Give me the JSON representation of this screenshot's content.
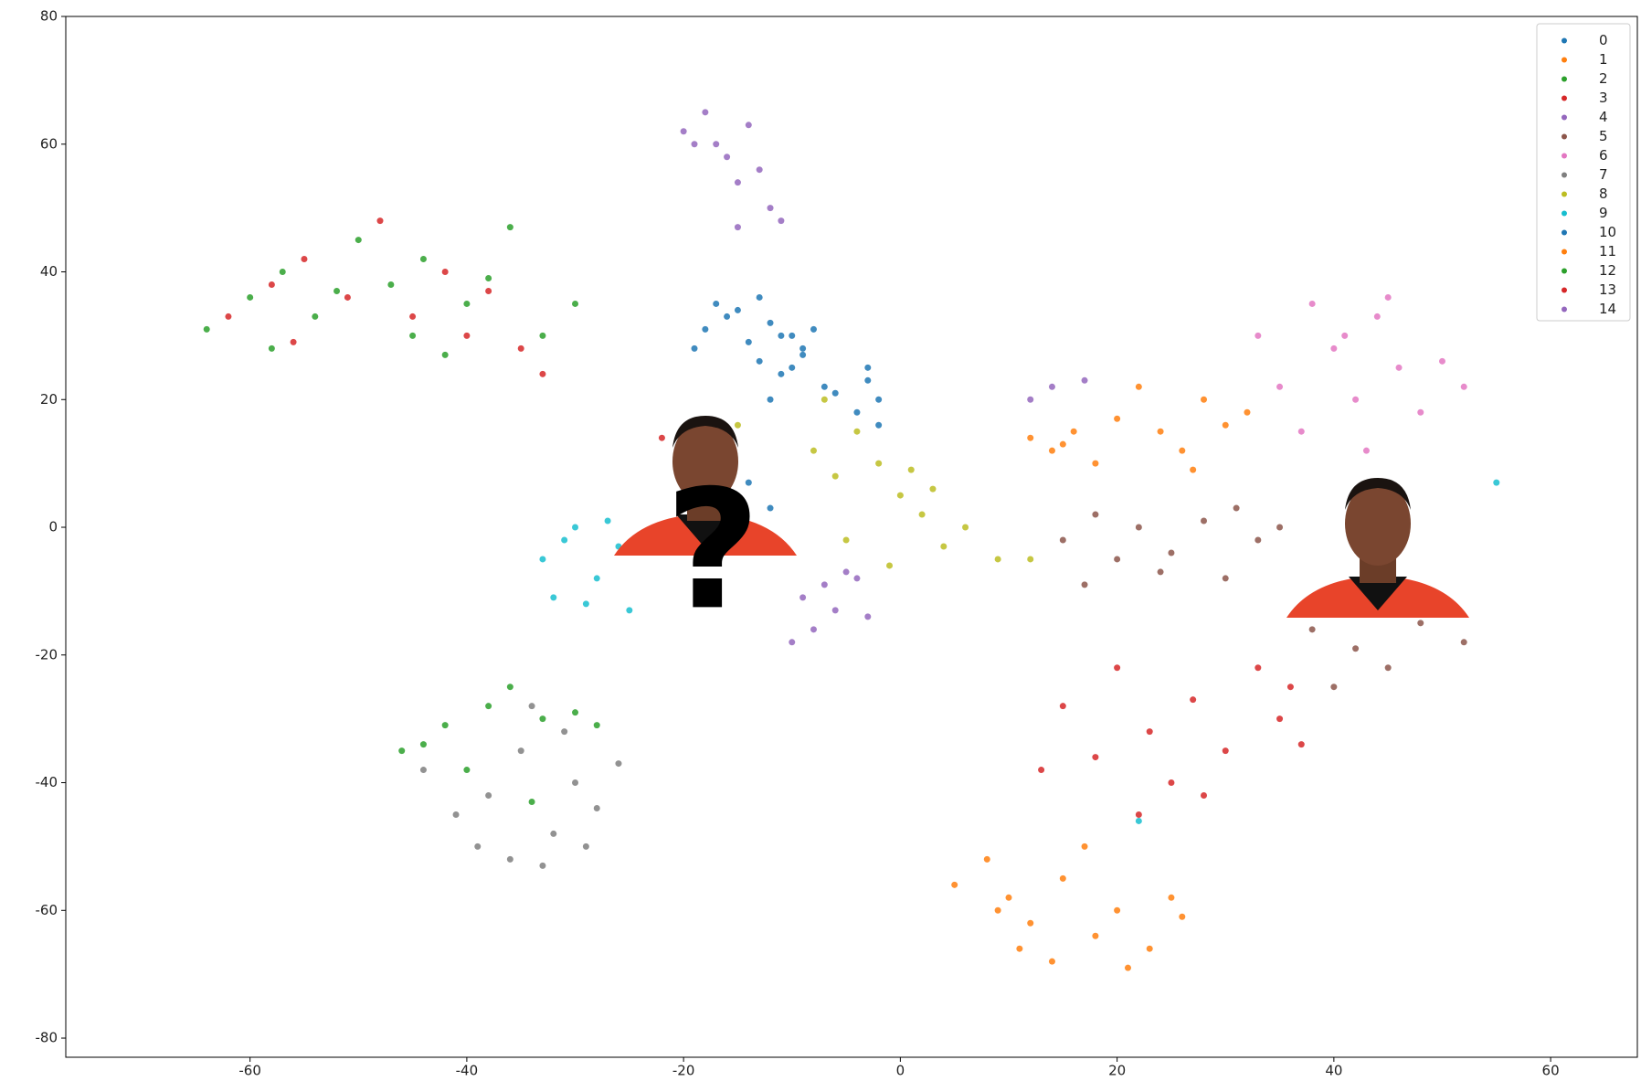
{
  "chart_data": {
    "type": "scatter",
    "xlim": [
      -77,
      68
    ],
    "ylim": [
      -83,
      80
    ],
    "xticks": [
      -60,
      -40,
      -20,
      0,
      20,
      40,
      60
    ],
    "yticks": [
      -80,
      -60,
      -40,
      -20,
      0,
      20,
      40,
      60,
      80
    ],
    "grid": false,
    "legend": "upper right",
    "annotation": "?",
    "series": [
      {
        "name": "0",
        "color": "#1f77b4",
        "x": [
          -18,
          -16,
          -14,
          -12,
          -10,
          -9,
          -13,
          -11,
          -15,
          -8,
          -7,
          -3,
          -2,
          -4,
          -14,
          -12
        ],
        "y": [
          31,
          33,
          29,
          32,
          30,
          27,
          26,
          24,
          34,
          31,
          22,
          25,
          20,
          18,
          7,
          3
        ]
      },
      {
        "name": "1",
        "color": "#ff7f0e",
        "x": [
          5,
          8,
          10,
          12,
          15,
          18,
          20,
          23,
          25,
          14,
          17,
          11,
          21,
          9,
          26
        ],
        "y": [
          -56,
          -52,
          -58,
          -62,
          -55,
          -64,
          -60,
          -66,
          -58,
          -68,
          -50,
          -66,
          -69,
          -60,
          -61
        ]
      },
      {
        "name": "2",
        "color": "#2ca02c",
        "x": [
          -64,
          -60,
          -57,
          -54,
          -50,
          -47,
          -44,
          -40,
          -36,
          -33,
          -58,
          -52,
          -45,
          -38,
          -42,
          -30
        ],
        "y": [
          31,
          36,
          40,
          33,
          45,
          38,
          42,
          35,
          47,
          30,
          28,
          37,
          30,
          39,
          27,
          35
        ]
      },
      {
        "name": "3",
        "color": "#d62728",
        "x": [
          -62,
          -58,
          -55,
          -51,
          -48,
          -45,
          -42,
          -38,
          -35,
          -33,
          -56,
          -40
        ],
        "y": [
          33,
          38,
          42,
          36,
          48,
          33,
          40,
          37,
          28,
          24,
          29,
          30
        ]
      },
      {
        "name": "4",
        "color": "#9467bd",
        "x": [
          -20,
          -18,
          -16,
          -15,
          -13,
          -12,
          -14,
          -17,
          -11,
          -19,
          -15
        ],
        "y": [
          62,
          65,
          58,
          54,
          56,
          50,
          63,
          60,
          48,
          60,
          47
        ]
      },
      {
        "name": "5",
        "color": "#8c564b",
        "x": [
          15,
          18,
          20,
          22,
          25,
          28,
          30,
          33,
          35,
          17,
          24,
          31,
          38,
          42,
          45,
          48,
          52,
          40,
          44
        ],
        "y": [
          -2,
          2,
          -5,
          0,
          -4,
          1,
          -8,
          -2,
          0,
          -9,
          -7,
          3,
          -16,
          -19,
          -22,
          -15,
          -18,
          -25,
          -13
        ]
      },
      {
        "name": "6",
        "color": "#e377c2",
        "x": [
          33,
          35,
          38,
          40,
          42,
          44,
          46,
          48,
          50,
          52,
          37,
          43,
          45,
          41
        ],
        "y": [
          30,
          22,
          35,
          28,
          20,
          33,
          25,
          18,
          26,
          22,
          15,
          12,
          36,
          30
        ]
      },
      {
        "name": "7",
        "color": "#7f7f7f",
        "x": [
          -44,
          -41,
          -38,
          -35,
          -32,
          -30,
          -28,
          -26,
          -36,
          -33,
          -39,
          -29,
          -34,
          -31
        ],
        "y": [
          -38,
          -45,
          -42,
          -35,
          -48,
          -40,
          -44,
          -37,
          -52,
          -53,
          -50,
          -50,
          -28,
          -32
        ]
      },
      {
        "name": "8",
        "color": "#bcbd22",
        "x": [
          -8,
          -6,
          -4,
          -2,
          0,
          2,
          4,
          6,
          -5,
          -1,
          1,
          3,
          -7,
          9,
          12,
          -15
        ],
        "y": [
          12,
          8,
          15,
          10,
          5,
          2,
          -3,
          0,
          -2,
          -6,
          9,
          6,
          20,
          -5,
          -5,
          16
        ]
      },
      {
        "name": "9",
        "color": "#17becf",
        "x": [
          -33,
          -31,
          -30,
          -28,
          -26,
          -32,
          -29,
          -27,
          -25,
          55,
          22
        ],
        "y": [
          -5,
          -2,
          0,
          -8,
          -3,
          -11,
          -12,
          1,
          -13,
          7,
          -46
        ]
      },
      {
        "name": "10",
        "color": "#1f77b4",
        "x": [
          -19,
          -17,
          -13,
          -11,
          -9,
          -6,
          -10,
          -12,
          -3,
          -2
        ],
        "y": [
          28,
          35,
          36,
          30,
          28,
          21,
          25,
          20,
          23,
          16
        ]
      },
      {
        "name": "11",
        "color": "#ff7f0e",
        "x": [
          12,
          14,
          16,
          18,
          20,
          24,
          26,
          28,
          30,
          32,
          15,
          22,
          27
        ],
        "y": [
          14,
          12,
          15,
          10,
          17,
          15,
          12,
          20,
          16,
          18,
          13,
          22,
          9
        ]
      },
      {
        "name": "12",
        "color": "#2ca02c",
        "x": [
          -46,
          -42,
          -38,
          -36,
          -33,
          -30,
          -28,
          -40,
          -44,
          -34
        ],
        "y": [
          -35,
          -31,
          -28,
          -25,
          -30,
          -29,
          -31,
          -38,
          -34,
          -43
        ]
      },
      {
        "name": "13",
        "color": "#d62728",
        "x": [
          15,
          18,
          20,
          23,
          25,
          27,
          30,
          33,
          35,
          37,
          13,
          22,
          28,
          36,
          -22
        ],
        "y": [
          -28,
          -36,
          -22,
          -32,
          -40,
          -27,
          -35,
          -22,
          -30,
          -34,
          -38,
          -45,
          -42,
          -25,
          14
        ]
      },
      {
        "name": "14",
        "color": "#9467bd",
        "x": [
          -9,
          -7,
          -6,
          -4,
          -3,
          -8,
          -5,
          -10,
          12,
          14,
          17
        ],
        "y": [
          -11,
          -9,
          -13,
          -8,
          -14,
          -16,
          -7,
          -18,
          20,
          22,
          23
        ]
      }
    ]
  }
}
